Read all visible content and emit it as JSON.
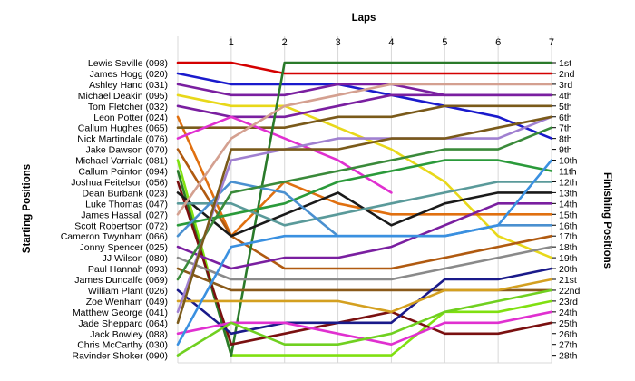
{
  "chart_data": {
    "type": "line",
    "title": "",
    "xlabel": "Laps",
    "ylabel_left": "Starting Positions",
    "ylabel_right": "Finishing Positions",
    "laps": [
      "",
      "1",
      "2",
      "3",
      "4",
      "5",
      "6",
      "7"
    ],
    "finish_labels": [
      "1st",
      "2nd",
      "3rd",
      "4th",
      "5th",
      "6th",
      "7th",
      "8th",
      "9th",
      "10th",
      "11th",
      "12th",
      "13th",
      "14th",
      "15th",
      "16th",
      "17th",
      "18th",
      "19th",
      "20th",
      "21st",
      "22nd",
      "23rd",
      "24th",
      "25th",
      "26th",
      "27th",
      "28th"
    ],
    "grid": true,
    "drivers": [
      {
        "name": "Lewis Seville (098)",
        "color": "#d40000",
        "positions": [
          1,
          1,
          2,
          2,
          2,
          2,
          2,
          2
        ]
      },
      {
        "name": "James Hogg (020)",
        "color": "#1a1acc",
        "positions": [
          2,
          3,
          3,
          3,
          4,
          5,
          6,
          8
        ]
      },
      {
        "name": "Ashley Hand (031)",
        "color": "#7a1fa0",
        "positions": [
          3,
          4,
          4,
          3,
          3,
          4,
          4,
          4
        ]
      },
      {
        "name": "Michael Deakin (095)",
        "color": "#e8d81a",
        "positions": [
          4,
          5,
          5,
          7,
          9,
          12,
          17,
          19
        ]
      },
      {
        "name": "Tom Fletcher (032)",
        "color": "#7a1fa0",
        "positions": [
          5,
          6,
          6,
          5,
          4,
          4,
          4,
          4
        ]
      },
      {
        "name": "Leon Potter (024)",
        "color": "#e07010",
        "positions": [
          6,
          17,
          12,
          14,
          15,
          15,
          15,
          15
        ]
      },
      {
        "name": "Callum Hughes (065)",
        "color": "#7a5a1a",
        "positions": [
          7,
          7,
          7,
          6,
          6,
          5,
          5,
          5
        ]
      },
      {
        "name": "Nick Martindale (076)",
        "color": "#e030d0",
        "positions": [
          8,
          6,
          8,
          10,
          13,
          null,
          null,
          null
        ]
      },
      {
        "name": "Jake Dawson (070)",
        "color": "#b05a10",
        "positions": [
          9,
          17,
          20,
          20,
          20,
          19,
          18,
          17
        ]
      },
      {
        "name": "Michael Varriale (081)",
        "color": "#80e010",
        "positions": [
          10,
          28,
          28,
          28,
          28,
          24,
          24,
          23
        ]
      },
      {
        "name": "Callum Pointon (094)",
        "color": "#2a7a2a",
        "positions": [
          11,
          28,
          1,
          1,
          1,
          1,
          1,
          1
        ]
      },
      {
        "name": "Joshua Feitelson (056)",
        "color": "#7a1010",
        "positions": [
          12,
          27,
          26,
          25,
          24,
          26,
          26,
          25
        ]
      },
      {
        "name": "Dean Burbank (023)",
        "color": "#1a1a1a",
        "positions": [
          13,
          17,
          15,
          13,
          16,
          14,
          13,
          13
        ]
      },
      {
        "name": "Luke Thomas (047)",
        "color": "#5a9a9a",
        "positions": [
          14,
          14,
          16,
          15,
          14,
          13,
          12,
          12
        ]
      },
      {
        "name": "James Hassall (027)",
        "color": "#d4a090",
        "positions": [
          15,
          8,
          5,
          4,
          3,
          3,
          3,
          3
        ]
      },
      {
        "name": "Scott Robertson (072)",
        "color": "#2a9a3a",
        "positions": [
          16,
          15,
          14,
          12,
          11,
          10,
          10,
          11
        ]
      },
      {
        "name": "Cameron Twynham (066)",
        "color": "#4a90d0",
        "positions": [
          17,
          12,
          13,
          17,
          17,
          17,
          16,
          16
        ]
      },
      {
        "name": "Jonny Spencer (025)",
        "color": "#7a1fa0",
        "positions": [
          18,
          20,
          19,
          19,
          18,
          16,
          14,
          14
        ]
      },
      {
        "name": "JJ Wilson (080)",
        "color": "#8a8a8a",
        "positions": [
          19,
          21,
          21,
          21,
          21,
          20,
          19,
          18
        ]
      },
      {
        "name": "Paul Hannah (093)",
        "color": "#8a5a1a",
        "positions": [
          20,
          22,
          22,
          22,
          22,
          22,
          22,
          22
        ]
      },
      {
        "name": "James Duncalfe (069)",
        "color": "#3a8a3a",
        "positions": [
          21,
          13,
          12,
          11,
          10,
          9,
          9,
          7
        ]
      },
      {
        "name": "William Plant (026)",
        "color": "#1a1a8a",
        "positions": [
          22,
          26,
          25,
          25,
          25,
          21,
          21,
          20
        ]
      },
      {
        "name": "Zoe Wenham (049)",
        "color": "#d4a020",
        "positions": [
          23,
          23,
          23,
          23,
          24,
          22,
          22,
          21
        ]
      },
      {
        "name": "Matthew George (041)",
        "color": "#a080d0",
        "positions": [
          24,
          10,
          9,
          8,
          8,
          8,
          8,
          6
        ]
      },
      {
        "name": "Jade Sheppard (064)",
        "color": "#7a5a1a",
        "positions": [
          25,
          9,
          9,
          9,
          8,
          8,
          7,
          6
        ]
      },
      {
        "name": "Jack Bowley (088)",
        "color": "#e030d0",
        "positions": [
          26,
          25,
          25,
          26,
          27,
          25,
          25,
          24
        ]
      },
      {
        "name": "Chris McCarthy (030)",
        "color": "#3a90e0",
        "positions": [
          27,
          18,
          17,
          17,
          17,
          17,
          16,
          10
        ]
      },
      {
        "name": "Ravinder Shoker (090)",
        "color": "#70d020",
        "positions": [
          28,
          25,
          27,
          27,
          26,
          24,
          23,
          22
        ]
      }
    ]
  }
}
